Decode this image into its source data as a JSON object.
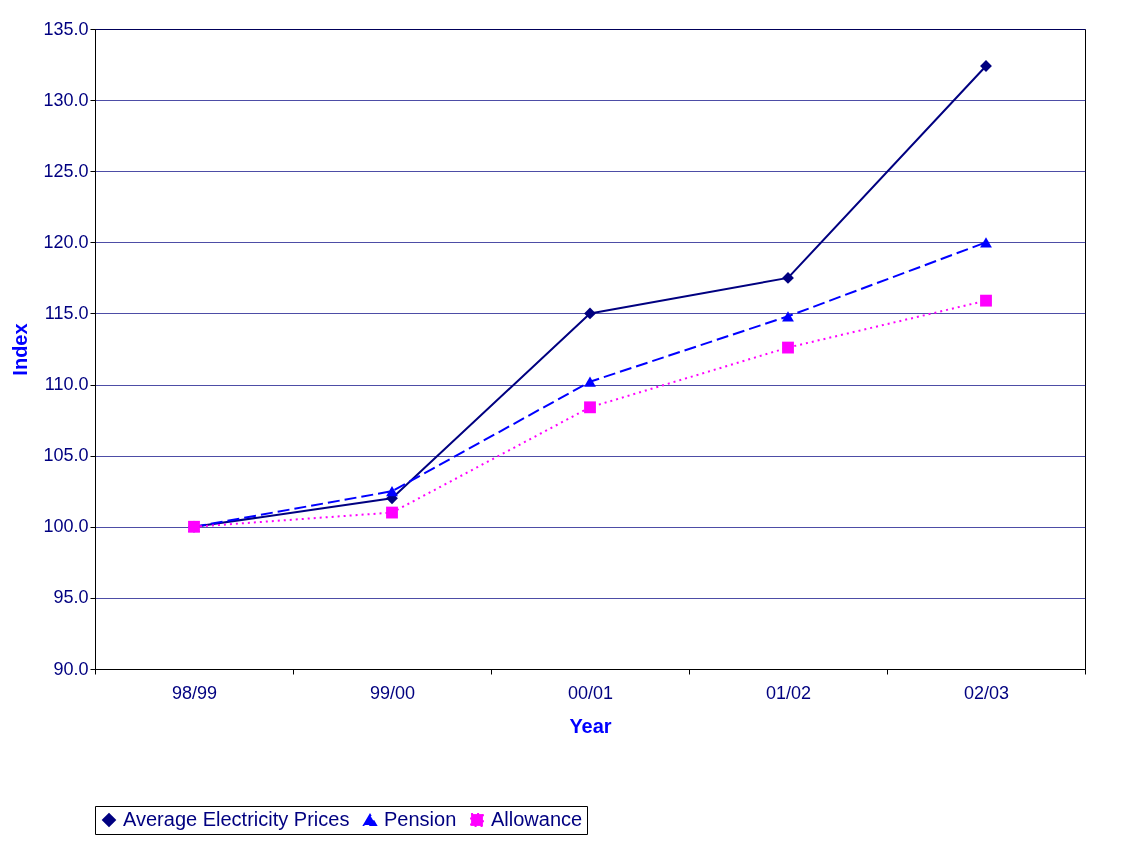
{
  "chart_data": {
    "type": "line",
    "xlabel": "Year",
    "ylabel": "Index",
    "categories": [
      "98/99",
      "99/00",
      "00/01",
      "01/02",
      "02/03"
    ],
    "series": [
      {
        "name": "Average Electricity Prices",
        "color": "#000080",
        "marker": "diamond",
        "line_style": "solid",
        "values": [
          100.0,
          102.0,
          115.0,
          117.5,
          132.4
        ]
      },
      {
        "name": "Pension",
        "color": "#0000ff",
        "marker": "triangle",
        "line_style": "dashed",
        "values": [
          100.0,
          102.5,
          110.2,
          114.8,
          120.0
        ]
      },
      {
        "name": "Allowance",
        "color": "#ff00ff",
        "marker": "square",
        "line_style": "dotted",
        "values": [
          100.0,
          101.0,
          108.4,
          112.6,
          115.9
        ]
      }
    ],
    "ylim": [
      90,
      135
    ],
    "yticks": [
      {
        "value": 90,
        "label": "90.0"
      },
      {
        "value": 95,
        "label": "95.0"
      },
      {
        "value": 100,
        "label": "100.0"
      },
      {
        "value": 105,
        "label": "105.0"
      },
      {
        "value": 110,
        "label": "110.0"
      },
      {
        "value": 115,
        "label": "115.0"
      },
      {
        "value": 120,
        "label": "120.0"
      },
      {
        "value": 125,
        "label": "125.0"
      },
      {
        "value": 130,
        "label": "130.0"
      },
      {
        "value": 135,
        "label": "135.0"
      }
    ],
    "grid": "y",
    "legend": "bottom"
  }
}
